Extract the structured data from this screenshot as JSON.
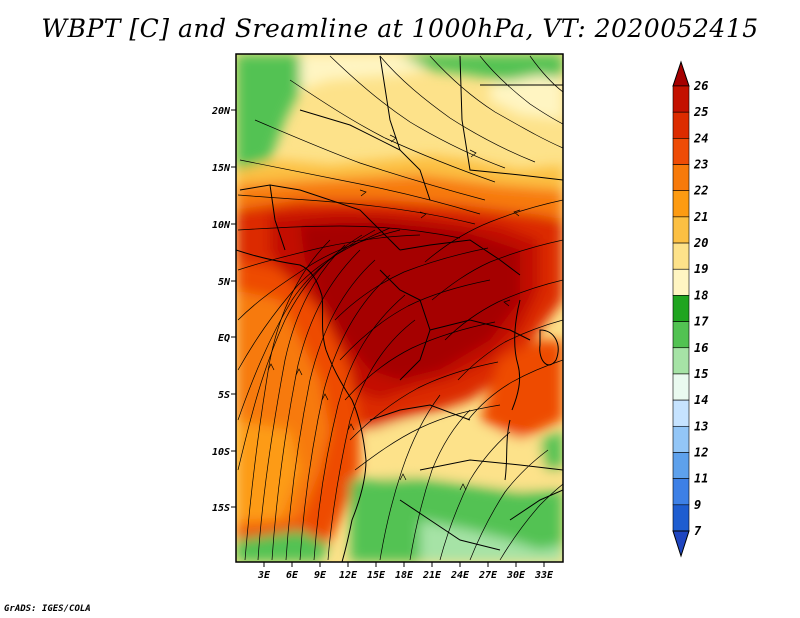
{
  "title": "WBPT [C] and Sreamline at 1000hPa, VT: 2020052415",
  "credit": "GrADS: IGES/COLA",
  "map": {
    "lat_labels": [
      "20N",
      "15N",
      "10N",
      "5N",
      "EQ",
      "5S",
      "10S",
      "15S"
    ],
    "lat_values": [
      20,
      15,
      10,
      5,
      0,
      -5,
      -10,
      -15
    ],
    "lon_labels": [
      "3E",
      "6E",
      "9E",
      "12E",
      "15E",
      "18E",
      "21E",
      "24E",
      "27E",
      "30E",
      "33E"
    ],
    "lon_values": [
      3,
      6,
      9,
      12,
      15,
      18,
      21,
      24,
      27,
      30,
      33
    ],
    "lat_range": [
      -20,
      24.5
    ],
    "lon_range": [
      0,
      35
    ]
  },
  "colorbar": {
    "labels": [
      "26",
      "25",
      "24",
      "23",
      "22",
      "21",
      "20",
      "19",
      "18",
      "17",
      "16",
      "15",
      "14",
      "13",
      "12",
      "11",
      "9",
      "7"
    ],
    "colors": [
      "#a50000",
      "#c31100",
      "#dc2c00",
      "#ee4c06",
      "#f77a0a",
      "#fd9b12",
      "#fcc043",
      "#fde28a",
      "#fff5c2",
      "#1fa51f",
      "#52c252",
      "#a6e3a6",
      "#eafaf0",
      "#c6e3ff",
      "#93c6f7",
      "#5ea1ec",
      "#3d80e6",
      "#1e5dd0",
      "#1f46c1"
    ]
  }
}
